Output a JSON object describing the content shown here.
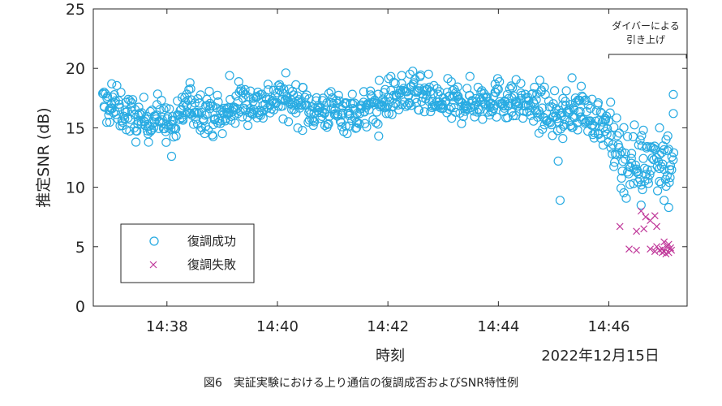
{
  "figure_caption": "図6　実証実験における上り通信の復調成否およびSNR特性例",
  "chart_data": {
    "type": "scatter",
    "ylabel": "推定SNR (dB)",
    "xlabel": "時刻",
    "date_label": "2022年12月15日",
    "ylim": [
      0,
      25
    ],
    "yticks": [
      "0",
      "5",
      "10",
      "15",
      "20",
      "25"
    ],
    "xlim": [
      "14:36:40",
      "14:47:25"
    ],
    "xticks": [
      "14:38",
      "14:40",
      "14:42",
      "14:44",
      "14:46"
    ],
    "grid": false,
    "legend_position": "bottom-left",
    "annotation": {
      "line1": "ダイバーによる",
      "line2": "引き上げ",
      "x_start": "14:46:00",
      "x_end": "14:47:25"
    },
    "colors": {
      "success": "#29abe2",
      "failure": "#c0399a"
    },
    "series": [
      {
        "name": "復調成功",
        "marker": "circle",
        "trend": [
          [
            "14:36:50",
            17.0
          ],
          [
            "14:37:10",
            16.5
          ],
          [
            "14:37:30",
            15.5
          ],
          [
            "14:37:50",
            16.0
          ],
          [
            "14:38:00",
            15.5
          ],
          [
            "14:38:10",
            15.0
          ],
          [
            "14:38:20",
            17.0
          ],
          [
            "14:38:40",
            16.5
          ],
          [
            "14:39:00",
            15.8
          ],
          [
            "14:39:20",
            17.2
          ],
          [
            "14:39:40",
            17.0
          ],
          [
            "14:40:00",
            17.5
          ],
          [
            "14:40:20",
            17.2
          ],
          [
            "14:40:40",
            16.5
          ],
          [
            "14:41:00",
            16.5
          ],
          [
            "14:41:30",
            16.2
          ],
          [
            "14:42:00",
            17.5
          ],
          [
            "14:42:30",
            17.8
          ],
          [
            "14:43:00",
            17.0
          ],
          [
            "14:43:30",
            17.2
          ],
          [
            "14:44:00",
            17.5
          ],
          [
            "14:44:30",
            17.0
          ],
          [
            "14:45:00",
            16.0
          ],
          [
            "14:45:30",
            16.5
          ],
          [
            "14:45:50",
            15.5
          ],
          [
            "14:46:00",
            14.5
          ],
          [
            "14:46:15",
            12.5
          ],
          [
            "14:46:30",
            12.0
          ],
          [
            "14:46:45",
            12.5
          ],
          [
            "14:47:00",
            12.5
          ],
          [
            "14:47:10",
            12.0
          ]
        ],
        "outliers": [
          [
            "14:45:07",
            8.9
          ],
          [
            "14:45:05",
            12.2
          ],
          [
            "14:45:10",
            14.1
          ],
          [
            "14:41:50",
            14.3
          ],
          [
            "14:38:05",
            12.6
          ],
          [
            "14:39:08",
            19.4
          ],
          [
            "14:42:15",
            19.4
          ],
          [
            "14:44:45",
            19.0
          ],
          [
            "14:45:20",
            19.2
          ],
          [
            "14:45:30",
            18.5
          ],
          [
            "14:37:00",
            18.7
          ],
          [
            "14:47:10",
            17.8
          ],
          [
            "14:47:10",
            16.2
          ],
          [
            "14:47:05",
            8.3
          ],
          [
            "14:47:00",
            8.9
          ],
          [
            "14:46:35",
            8.5
          ],
          [
            "14:47:05",
            13.2
          ],
          [
            "14:46:55",
            15.0
          ],
          [
            "14:38:25",
            18.8
          ]
        ]
      },
      {
        "name": "復調失敗",
        "marker": "x",
        "points": [
          [
            "14:46:12",
            6.7
          ],
          [
            "14:46:35",
            8.0
          ],
          [
            "14:46:40",
            7.5
          ],
          [
            "14:46:45",
            7.2
          ],
          [
            "14:46:50",
            7.6
          ],
          [
            "14:46:52",
            6.7
          ],
          [
            "14:46:30",
            6.3
          ],
          [
            "14:46:38",
            6.5
          ],
          [
            "14:46:22",
            4.8
          ],
          [
            "14:46:30",
            4.7
          ],
          [
            "14:46:45",
            4.8
          ],
          [
            "14:46:50",
            4.6
          ],
          [
            "14:46:55",
            4.7
          ],
          [
            "14:46:58",
            4.8
          ],
          [
            "14:47:00",
            4.6
          ],
          [
            "14:47:03",
            5.0
          ],
          [
            "14:47:05",
            4.5
          ],
          [
            "14:47:08",
            4.7
          ],
          [
            "14:47:00",
            5.4
          ],
          [
            "14:47:05",
            5.2
          ],
          [
            "14:47:02",
            4.4
          ],
          [
            "14:46:58",
            4.5
          ],
          [
            "14:47:07",
            4.9
          ],
          [
            "14:46:52",
            5.0
          ]
        ]
      }
    ]
  }
}
